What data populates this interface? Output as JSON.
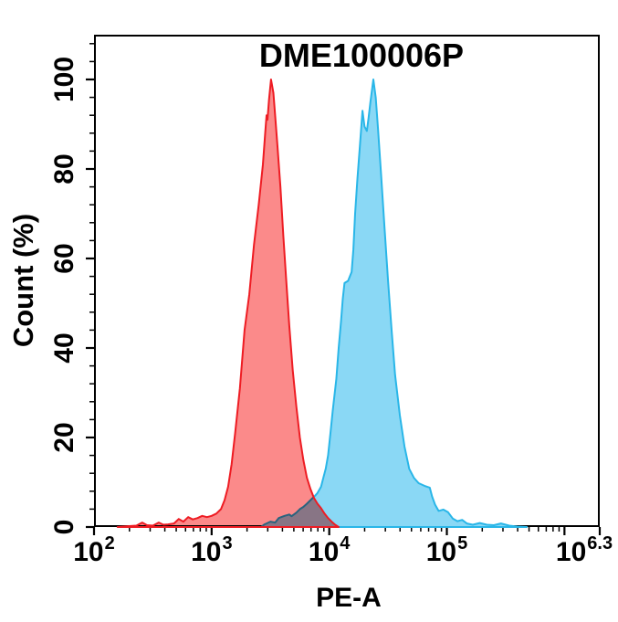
{
  "title": "DME100006P",
  "axes": {
    "x": {
      "label": "PE-A",
      "scale": "log10",
      "range": [
        2,
        6.3
      ],
      "major_ticks": [
        {
          "log": 2,
          "base": "10",
          "exp": "2"
        },
        {
          "log": 3,
          "base": "10",
          "exp": "3"
        },
        {
          "log": 4,
          "base": "10",
          "exp": "4"
        },
        {
          "log": 5,
          "base": "10",
          "exp": "5"
        },
        {
          "log": 6,
          "base": "",
          "exp": ""
        },
        {
          "log": 6.3,
          "base": "10",
          "exp": "6.3"
        }
      ],
      "minor_decades": [
        2,
        3,
        4,
        5
      ]
    },
    "y": {
      "label": "Count (%)",
      "range": [
        0,
        110
      ],
      "major_ticks": [
        0,
        20,
        40,
        60,
        80,
        100
      ],
      "minor_step": 4
    }
  },
  "chart_data": {
    "type": "area",
    "title": "DME100006P",
    "xlabel": "PE-A",
    "ylabel": "Count (%)",
    "x_scale": "log10",
    "x_range_log": [
      2,
      6.3
    ],
    "y_range": [
      0,
      110
    ],
    "grid": false,
    "legend": "none",
    "series": [
      {
        "name": "red",
        "peak_log_x": 3.505,
        "peak_percent": 100,
        "color_fill": "#fb8a8a",
        "color_line": "#ee1c23",
        "points": [
          [
            2.2,
            0
          ],
          [
            2.3,
            0.2
          ],
          [
            2.36,
            0.3
          ],
          [
            2.41,
            1.0
          ],
          [
            2.45,
            0.4
          ],
          [
            2.5,
            0.3
          ],
          [
            2.55,
            1.0
          ],
          [
            2.59,
            0.5
          ],
          [
            2.63,
            0.6
          ],
          [
            2.68,
            0.8
          ],
          [
            2.72,
            1.8
          ],
          [
            2.76,
            1.2
          ],
          [
            2.8,
            2.2
          ],
          [
            2.84,
            1.7
          ],
          [
            2.88,
            2.0
          ],
          [
            2.92,
            2.5
          ],
          [
            2.96,
            2.2
          ],
          [
            3.0,
            2.5
          ],
          [
            3.04,
            3.0
          ],
          [
            3.08,
            4.0
          ],
          [
            3.11,
            6.0
          ],
          [
            3.14,
            9
          ],
          [
            3.17,
            14
          ],
          [
            3.2,
            21
          ],
          [
            3.24,
            31
          ],
          [
            3.28,
            44
          ],
          [
            3.32,
            52
          ],
          [
            3.36,
            63
          ],
          [
            3.4,
            72
          ],
          [
            3.436,
            81
          ],
          [
            3.455,
            88
          ],
          [
            3.467,
            92
          ],
          [
            3.475,
            91
          ],
          [
            3.488,
            95.5
          ],
          [
            3.505,
            100
          ],
          [
            3.525,
            97
          ],
          [
            3.54,
            92
          ],
          [
            3.56,
            85
          ],
          [
            3.585,
            76
          ],
          [
            3.61,
            65
          ],
          [
            3.635,
            55
          ],
          [
            3.66,
            45
          ],
          [
            3.69,
            35
          ],
          [
            3.72,
            27
          ],
          [
            3.75,
            20
          ],
          [
            3.78,
            15
          ],
          [
            3.81,
            11
          ],
          [
            3.84,
            8.5
          ],
          [
            3.87,
            6.5
          ],
          [
            3.9,
            5.2
          ],
          [
            3.93,
            4.2
          ],
          [
            3.96,
            3.0
          ],
          [
            3.99,
            2.0
          ],
          [
            4.02,
            1.2
          ],
          [
            4.05,
            0.5
          ],
          [
            4.08,
            0
          ]
        ]
      },
      {
        "name": "blue",
        "peak_log_x": 4.375,
        "peak_percent": 100,
        "color_fill": "#8ad8f5",
        "color_line": "#29b6e8",
        "points": [
          [
            3.42,
            0
          ],
          [
            3.45,
            0.6
          ],
          [
            3.5,
            1.2
          ],
          [
            3.54,
            1.0
          ],
          [
            3.57,
            2.0
          ],
          [
            3.62,
            2.5
          ],
          [
            3.66,
            2.8
          ],
          [
            3.68,
            2.4
          ],
          [
            3.72,
            3.2
          ],
          [
            3.75,
            4.0
          ],
          [
            3.78,
            4.5
          ],
          [
            3.81,
            5.2
          ],
          [
            3.84,
            6.0
          ],
          [
            3.88,
            7.0
          ],
          [
            3.9,
            7.6
          ],
          [
            3.93,
            9
          ],
          [
            3.95,
            11
          ],
          [
            3.97,
            13
          ],
          [
            3.99,
            16
          ],
          [
            4.01,
            21
          ],
          [
            4.03,
            26
          ],
          [
            4.06,
            33
          ],
          [
            4.08,
            40
          ],
          [
            4.1,
            46
          ],
          [
            4.115,
            51
          ],
          [
            4.13,
            54.5
          ],
          [
            4.16,
            55
          ],
          [
            4.19,
            57
          ],
          [
            4.205,
            62
          ],
          [
            4.22,
            70
          ],
          [
            4.24,
            78
          ],
          [
            4.26,
            85
          ],
          [
            4.283,
            93
          ],
          [
            4.3,
            89.5
          ],
          [
            4.32,
            88.5
          ],
          [
            4.335,
            91.5
          ],
          [
            4.35,
            95
          ],
          [
            4.375,
            100
          ],
          [
            4.395,
            96
          ],
          [
            4.415,
            89
          ],
          [
            4.44,
            79
          ],
          [
            4.47,
            67
          ],
          [
            4.5,
            55
          ],
          [
            4.53,
            44
          ],
          [
            4.56,
            34
          ],
          [
            4.6,
            25
          ],
          [
            4.64,
            18
          ],
          [
            4.68,
            13
          ],
          [
            4.72,
            11
          ],
          [
            4.76,
            9.8
          ],
          [
            4.81,
            9.2
          ],
          [
            4.855,
            8.8
          ],
          [
            4.875,
            6.8
          ],
          [
            4.9,
            5.0
          ],
          [
            4.93,
            3.6
          ],
          [
            4.97,
            3.9
          ],
          [
            5.01,
            3.3
          ],
          [
            5.05,
            1.9
          ],
          [
            5.09,
            1.3
          ],
          [
            5.13,
            1.6
          ],
          [
            5.17,
            0.8
          ],
          [
            5.22,
            0.5
          ],
          [
            5.28,
            0.9
          ],
          [
            5.34,
            0.5
          ],
          [
            5.4,
            0.4
          ],
          [
            5.46,
            0.8
          ],
          [
            5.53,
            0.3
          ],
          [
            5.6,
            0.1
          ],
          [
            5.68,
            0
          ]
        ]
      }
    ]
  },
  "plot_colors": {
    "background": "#ffffff",
    "border": "#000000",
    "tick": "#000000"
  }
}
